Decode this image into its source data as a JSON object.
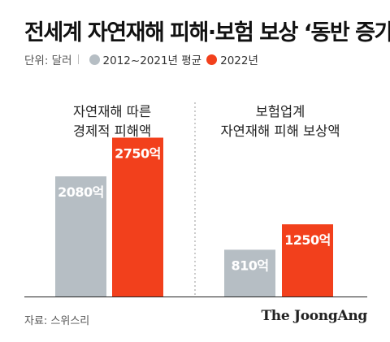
{
  "title": "전세계 자연재해 피해·보험 보상 ‘동반 증가’",
  "legend": {
    "unit": "단위: 달러",
    "items": [
      {
        "label": "2012~2021년 평균",
        "color": "#b6bec4"
      },
      {
        "label": "2022년",
        "color": "#f2401c"
      }
    ]
  },
  "source": "자료: 스위스리",
  "brand": "The JoongAng",
  "chart_data": {
    "type": "bar",
    "unit": "달러",
    "groups": [
      {
        "label_lines": [
          "자연재해 따른",
          "경제적 피해액"
        ],
        "bars": [
          {
            "series": "2012~2021년 평균",
            "value": 2080,
            "label": "2080억"
          },
          {
            "series": "2022년",
            "value": 2750,
            "label": "2750억"
          }
        ]
      },
      {
        "label_lines": [
          "보험업계",
          "자연재해 피해 보상액"
        ],
        "bars": [
          {
            "series": "2012~2021년 평균",
            "value": 810,
            "label": "810억"
          },
          {
            "series": "2022년",
            "value": 1250,
            "label": "1250억"
          }
        ]
      }
    ],
    "series": [
      {
        "name": "2012~2021년 평균",
        "color": "#b6bec4"
      },
      {
        "name": "2022년",
        "color": "#f2401c"
      }
    ],
    "ylim": [
      0,
      3000
    ]
  }
}
